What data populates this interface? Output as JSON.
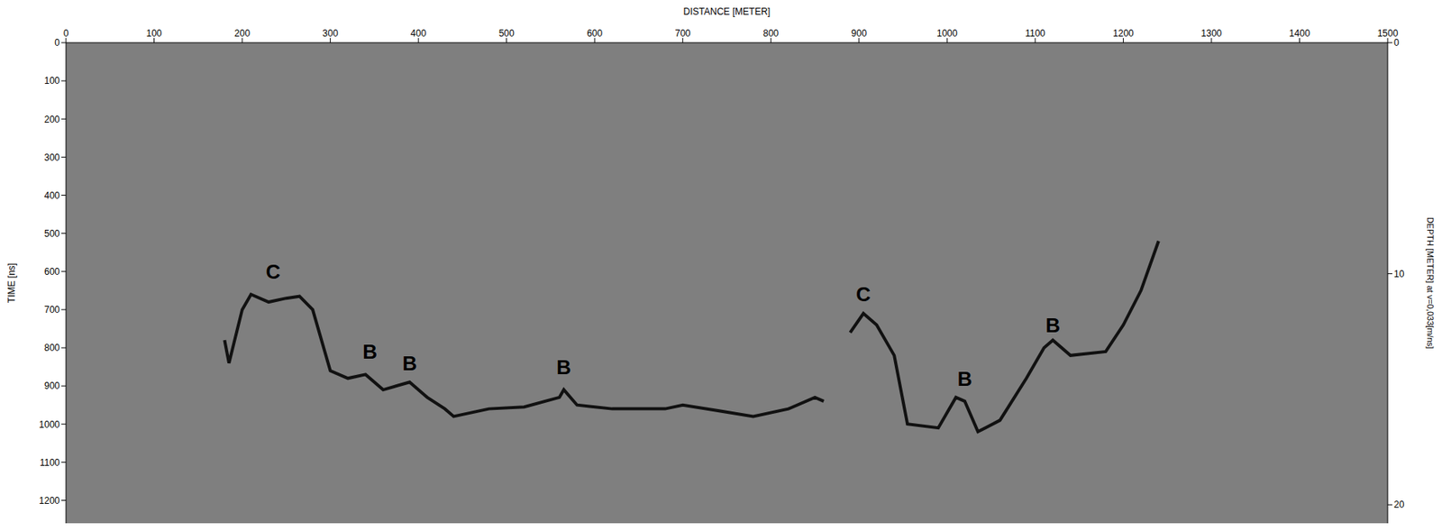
{
  "chart_data": {
    "type": "line",
    "x_label": "DISTANCE [METER]",
    "y_label": "TIME [ns]",
    "y2_label": "DEPTH [METER] at v=0,033[m/ns]",
    "x": [
      180,
      185,
      200,
      210,
      230,
      250,
      265,
      280,
      300,
      320,
      340,
      360,
      390,
      410,
      430,
      440,
      480,
      520,
      560,
      565,
      580,
      620,
      680,
      700,
      740,
      780,
      820,
      850,
      860,
      875,
      890,
      905,
      920,
      940,
      955,
      990,
      1010,
      1020,
      1035,
      1060,
      1090,
      1110,
      1120,
      1140,
      1180,
      1200,
      1220,
      1240
    ],
    "values": [
      780,
      840,
      700,
      660,
      680,
      670,
      665,
      700,
      860,
      880,
      870,
      910,
      890,
      930,
      960,
      980,
      960,
      955,
      930,
      910,
      950,
      960,
      960,
      950,
      965,
      980,
      960,
      930,
      940,
      null,
      760,
      710,
      740,
      820,
      1000,
      1010,
      930,
      940,
      1020,
      990,
      880,
      800,
      780,
      820,
      810,
      740,
      650,
      520
    ],
    "color": "#111111",
    "xlim": [
      0,
      1500
    ],
    "xticks": [
      0,
      100,
      200,
      300,
      400,
      500,
      600,
      700,
      800,
      900,
      1000,
      1100,
      1200,
      1300,
      1400,
      1500
    ],
    "ylim": [
      0,
      1260
    ],
    "yticks": [
      0,
      100,
      200,
      300,
      400,
      500,
      600,
      700,
      800,
      900,
      1000,
      1100,
      1200
    ],
    "y2lim": [
      0,
      20.8
    ],
    "y2ticks": [
      0,
      10,
      20
    ],
    "grid": false,
    "annotations": [
      {
        "text": "C",
        "x": 235,
        "y": 600
      },
      {
        "text": "B",
        "x": 345,
        "y": 810
      },
      {
        "text": "B",
        "x": 390,
        "y": 840
      },
      {
        "text": "B",
        "x": 565,
        "y": 850
      },
      {
        "text": "C",
        "x": 905,
        "y": 660
      },
      {
        "text": "B",
        "x": 1020,
        "y": 880
      },
      {
        "text": "B",
        "x": 1120,
        "y": 740
      }
    ]
  }
}
